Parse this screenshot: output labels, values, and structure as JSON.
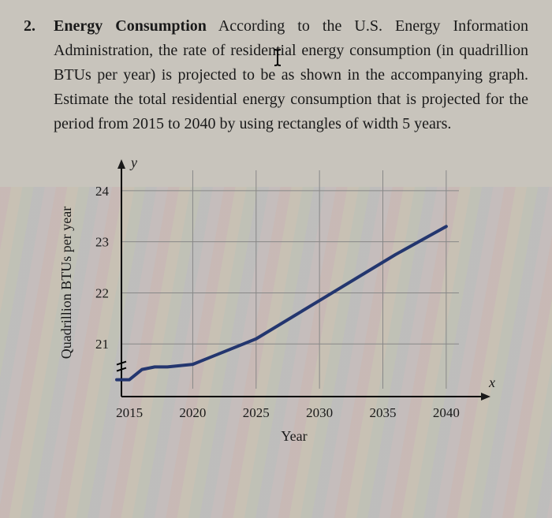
{
  "problem": {
    "number": "2.",
    "title": "Energy Consumption",
    "text": "According to the U.S. Energy Information Administration, the rate of residential energy consumption (in quadrillion BTUs per year) is projected to be as shown in the accompanying graph. Estimate the total residential energy consumption that is projected for the period from 2015 to 2040 by using rectangles of width 5 years."
  },
  "chart": {
    "type": "line",
    "x_var": "x",
    "y_var": "y",
    "xlabel": "Year",
    "ylabel": "Quadrillion BTUs per year",
    "x_ticks": [
      2015,
      2020,
      2025,
      2030,
      2035,
      2040
    ],
    "y_ticks": [
      21,
      22,
      23,
      24
    ],
    "xlim": [
      2014,
      2042
    ],
    "ylim": [
      20.0,
      24.4
    ],
    "series": {
      "color": "#23366f",
      "line_width": 4,
      "points": [
        [
          2014,
          20.3
        ],
        [
          2015,
          20.3
        ],
        [
          2016,
          20.5
        ],
        [
          2017,
          20.55
        ],
        [
          2018,
          20.55
        ],
        [
          2020,
          20.6
        ],
        [
          2022,
          20.8
        ],
        [
          2025,
          21.1
        ],
        [
          2028,
          21.55
        ],
        [
          2030,
          21.85
        ],
        [
          2033,
          22.3
        ],
        [
          2036,
          22.75
        ],
        [
          2040,
          23.3
        ]
      ]
    },
    "grid_color": "#888888",
    "axis_color": "#000000",
    "background_color": "#c8c4bc",
    "label_fontsize": 18,
    "tick_fontsize": 17
  }
}
